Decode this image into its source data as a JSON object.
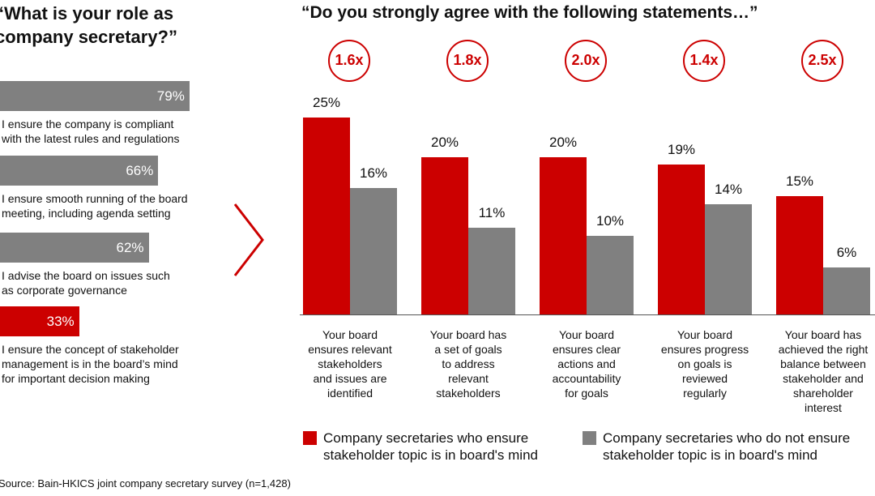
{
  "colors": {
    "red": "#cc0000",
    "gray": "#808080"
  },
  "left_panel": {
    "title_line1": "“What is your role as",
    "title_line2": "company secretary?”",
    "items": [
      {
        "value": 79,
        "value_label": "79%",
        "label_line1": "I ensure the company is compliant",
        "label_line2": "with the latest rules and regulations",
        "label_line3": "",
        "color": "gray"
      },
      {
        "value": 66,
        "value_label": "66%",
        "label_line1": "I ensure smooth running of the board",
        "label_line2": "meeting, including agenda setting",
        "label_line3": "",
        "color": "gray"
      },
      {
        "value": 62,
        "value_label": "62%",
        "label_line1": "I advise the board on issues such",
        "label_line2": "as corporate governance",
        "label_line3": "",
        "color": "gray"
      },
      {
        "value": 33,
        "value_label": "33%",
        "label_line1": "I ensure the concept of stakeholder",
        "label_line2": "management is in the board’s mind",
        "label_line3": "for important decision making",
        "color": "red"
      }
    ]
  },
  "chart_data": {
    "type": "bar",
    "title": "“Do you strongly agree with the following statements…”",
    "categories": [
      "Your board ensures relevant stakeholders and issues are identified",
      "Your board has a set of goals to address relevant stakeholders",
      "Your board ensures clear actions and accountability for goals",
      "Your board ensures progress on goals is reviewed regularly",
      "Your board has achieved the right balance between stakeholder and shareholder interest"
    ],
    "category_lines": [
      [
        "Your board",
        "ensures relevant",
        "stakeholders",
        "and issues are",
        "identified"
      ],
      [
        "Your board has",
        "a set of goals",
        "to address",
        "relevant",
        "stakeholders"
      ],
      [
        "Your board",
        "ensures clear",
        "actions and",
        "accountability",
        "for goals"
      ],
      [
        "Your board",
        "ensures progress",
        "on goals is",
        "reviewed",
        "regularly"
      ],
      [
        "Your board has",
        "achieved the right",
        "balance between",
        "stakeholder and",
        "shareholder",
        "interest"
      ]
    ],
    "multipliers": [
      "1.6x",
      "1.8x",
      "2.0x",
      "1.4x",
      "2.5x"
    ],
    "series": [
      {
        "name": "Company secretaries who ensure stakeholder topic is in board's mind",
        "values": [
          25,
          20,
          20,
          19,
          15
        ],
        "labels": [
          "25%",
          "20%",
          "20%",
          "19%",
          "15%"
        ],
        "color": "#cc0000"
      },
      {
        "name": "Company secretaries who do not ensure stakeholder topic is in board's mind",
        "values": [
          16,
          11,
          10,
          14,
          6
        ],
        "labels": [
          "16%",
          "11%",
          "10%",
          "14%",
          "6%"
        ],
        "color": "#808080"
      }
    ],
    "legend": [
      {
        "line1": "Company secretaries who ensure",
        "line2": "stakeholder topic is in board's mind"
      },
      {
        "line1": "Company secretaries who do not ensure",
        "line2": "stakeholder topic is in board's mind"
      }
    ],
    "legend_position": "bottom",
    "ylim": [
      0,
      25
    ],
    "grid": false
  },
  "source": "Source: Bain-HKICS joint company secretary survey (n=1,428)"
}
